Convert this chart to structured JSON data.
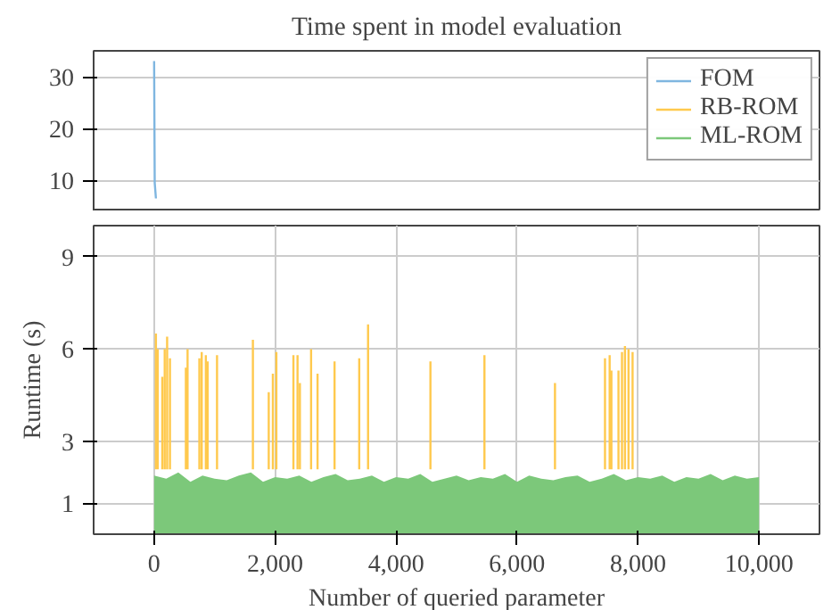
{
  "chart_data": [
    {
      "type": "line",
      "title": "Time spent in model evaluation",
      "xlim": [
        -1000,
        11000
      ],
      "ylim": [
        4,
        35
      ],
      "yticks": [
        10,
        20,
        30
      ],
      "tick_labels": "y",
      "grid": true,
      "legend": "top right",
      "series": [
        {
          "name": "FOM",
          "color": "#7fb6e0",
          "x": [
            0,
            10,
            30
          ],
          "values": [
            33,
            9.5,
            6.5
          ]
        }
      ]
    },
    {
      "type": "line",
      "legend": "top right",
      "xlabel": "Number of queried parameter",
      "ylabel": "Runtime (s)",
      "xlim": [
        -1000,
        11000
      ],
      "ylim": [
        0,
        10
      ],
      "yticks": [
        1,
        3,
        6,
        9
      ],
      "xticks": [
        0,
        {
          "value": 2000,
          "label": "2,000"
        },
        {
          "value": 4000,
          "label": "4,000"
        },
        {
          "value": 6000,
          "label": "6,000"
        },
        {
          "value": 8000,
          "label": "8,000"
        },
        {
          "value": 10000,
          "label": "10,000"
        }
      ],
      "grid": true,
      "series": [
        {
          "name": "RB-ROM",
          "color": "#ffc94d",
          "x": [
            30,
            30,
            31,
            60,
            60,
            61,
            135,
            135,
            136,
            175,
            175,
            176,
            215,
            215,
            216,
            262,
            262,
            263,
            525,
            525,
            526,
            553,
            553,
            554,
            748,
            748,
            749,
            787,
            787,
            788,
            855,
            855,
            856,
            885,
            885,
            886,
            1040,
            1040,
            1041,
            1633,
            1633,
            1634,
            1895,
            1895,
            1896,
            1963,
            1963,
            1964,
            2021,
            2021,
            2022,
            2303,
            2303,
            2304,
            2371,
            2371,
            2372,
            2410,
            2410,
            2411,
            2595,
            2595,
            2596,
            2702,
            2702,
            2703,
            2983,
            2983,
            2984,
            3391,
            3391,
            3392,
            3537,
            3537,
            3538,
            4568,
            4568,
            4569,
            5461,
            5461,
            5462,
            6627,
            6627,
            6628,
            7454,
            7454,
            7455,
            7531,
            7531,
            7532,
            7560,
            7560,
            7561,
            7677,
            7677,
            7678,
            7735,
            7735,
            7736,
            7784,
            7784,
            7785,
            7843,
            7843,
            7844,
            7910,
            7910
          ],
          "values": [
            2.1,
            6.5,
            null,
            2.1,
            6.0,
            null,
            2.1,
            5.1,
            null,
            2.1,
            6.0,
            null,
            2.1,
            6.4,
            null,
            2.1,
            5.7,
            null,
            2.1,
            5.4,
            null,
            2.1,
            6.0,
            null,
            2.1,
            5.7,
            null,
            2.1,
            5.9,
            null,
            2.1,
            5.8,
            null,
            2.1,
            5.6,
            null,
            2.1,
            5.8,
            null,
            2.1,
            6.3,
            null,
            2.1,
            4.6,
            null,
            2.1,
            5.2,
            null,
            2.1,
            5.9,
            null,
            2.1,
            5.8,
            null,
            2.1,
            5.8,
            null,
            2.1,
            4.9,
            null,
            2.1,
            6.0,
            null,
            2.1,
            5.2,
            null,
            2.1,
            5.6,
            null,
            2.1,
            5.7,
            null,
            2.1,
            6.8,
            null,
            2.1,
            5.6,
            null,
            2.1,
            5.8,
            null,
            2.1,
            4.9,
            null,
            2.1,
            5.7,
            null,
            2.1,
            5.8,
            null,
            2.1,
            5.3,
            null,
            2.1,
            5.3,
            null,
            2.1,
            5.9,
            null,
            2.1,
            6.1,
            null,
            2.1,
            6.0,
            null,
            2.1,
            5.9
          ]
        },
        {
          "name": "ML-ROM",
          "color": "#7cc87a",
          "type": "area",
          "x": [
            0,
            200,
            400,
            600,
            800,
            1000,
            1200,
            1400,
            1600,
            1800,
            2000,
            2200,
            2400,
            2600,
            2800,
            3000,
            3200,
            3400,
            3600,
            3800,
            4000,
            4200,
            4400,
            4600,
            4800,
            5000,
            5200,
            5400,
            5600,
            5800,
            6000,
            6200,
            6400,
            6600,
            6800,
            7000,
            7200,
            7400,
            7600,
            7800,
            8000,
            8200,
            8400,
            8600,
            8800,
            9000,
            9200,
            9400,
            9600,
            9800,
            10000
          ],
          "values": [
            1.9,
            1.8,
            2.0,
            1.7,
            1.9,
            1.8,
            1.75,
            1.9,
            2.0,
            1.7,
            1.85,
            1.8,
            1.9,
            1.7,
            1.85,
            1.95,
            1.75,
            1.8,
            1.9,
            1.7,
            1.85,
            1.8,
            1.95,
            1.7,
            1.8,
            1.9,
            1.75,
            1.85,
            1.8,
            1.95,
            1.7,
            1.9,
            1.8,
            1.75,
            1.85,
            1.9,
            1.7,
            1.8,
            1.95,
            1.75,
            1.85,
            1.8,
            1.9,
            1.7,
            1.85,
            1.8,
            1.95,
            1.75,
            1.9,
            1.8,
            1.85
          ]
        }
      ]
    }
  ]
}
